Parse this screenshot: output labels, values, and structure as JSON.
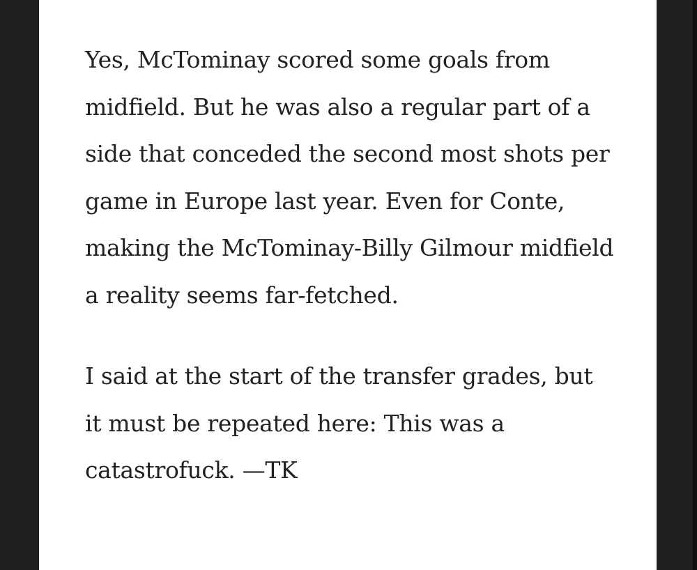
{
  "article": {
    "paragraphs": [
      "Yes, McTominay scored some goals from midfield. But he was also a regular part of a side that conceded the second most shots per game in Europe last year. Even for Conte, making the McTominay-Billy Gilmour midfield a reality seems far-fetched.",
      "I said at the start of the transfer grades, but it must be repeated here: This was a catastrofuck. —TK"
    ]
  }
}
